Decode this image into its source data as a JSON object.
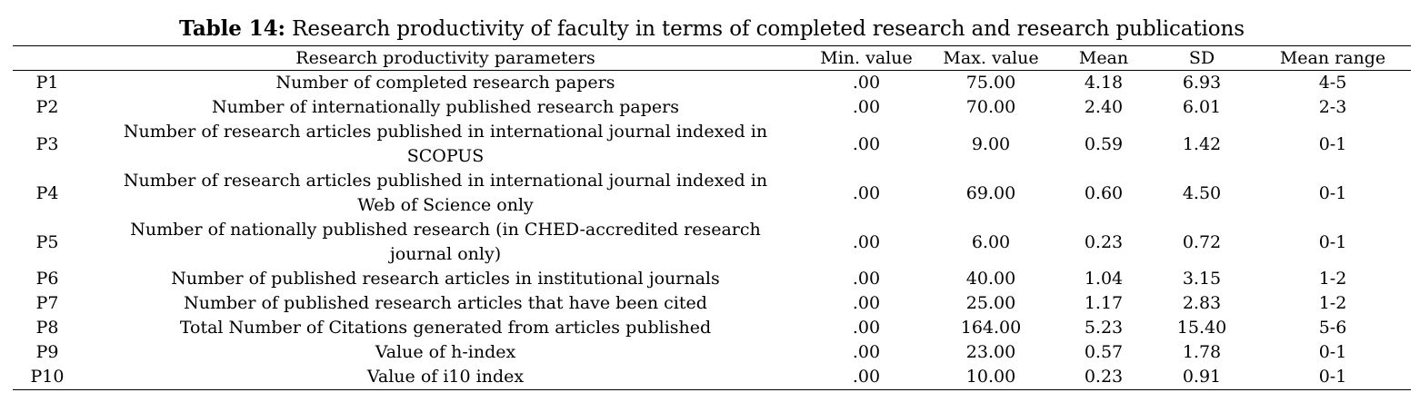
{
  "caption": {
    "label": "Table 14:",
    "text": "Research productivity of faculty in terms of completed research and research publications"
  },
  "table": {
    "headers": [
      "",
      "Research productivity parameters",
      "Min. value",
      "Max. value",
      "Mean",
      "SD",
      "Mean range"
    ],
    "rows": [
      {
        "id": "P1",
        "parameter": "Number of completed research papers",
        "min": ".00",
        "max": "75.00",
        "mean": "4.18",
        "sd": "6.93",
        "range": "4-5"
      },
      {
        "id": "P2",
        "parameter": "Number of internationally published research papers",
        "min": ".00",
        "max": "70.00",
        "mean": "2.40",
        "sd": "6.01",
        "range": "2-3"
      },
      {
        "id": "P3",
        "parameter": "Number of research articles published in international journal indexed in SCOPUS",
        "min": ".00",
        "max": "9.00",
        "mean": "0.59",
        "sd": "1.42",
        "range": "0-1"
      },
      {
        "id": "P4",
        "parameter": "Number of research articles published in international journal indexed in Web of Science only",
        "min": ".00",
        "max": "69.00",
        "mean": "0.60",
        "sd": "4.50",
        "range": "0-1"
      },
      {
        "id": "P5",
        "parameter": "Number of nationally published research (in CHED-accredited research journal only)",
        "min": ".00",
        "max": "6.00",
        "mean": "0.23",
        "sd": "0.72",
        "range": "0-1"
      },
      {
        "id": "P6",
        "parameter": "Number of published research articles in institutional journals",
        "min": ".00",
        "max": "40.00",
        "mean": "1.04",
        "sd": "3.15",
        "range": "1-2"
      },
      {
        "id": "P7",
        "parameter": "Number of published research articles that have been cited",
        "min": ".00",
        "max": "25.00",
        "mean": "1.17",
        "sd": "2.83",
        "range": "1-2"
      },
      {
        "id": "P8",
        "parameter": "Total Number of Citations generated from articles published",
        "min": ".00",
        "max": "164.00",
        "mean": "5.23",
        "sd": "15.40",
        "range": "5-6"
      },
      {
        "id": "P9",
        "parameter": "Value of h-index",
        "min": ".00",
        "max": "23.00",
        "mean": "0.57",
        "sd": "1.78",
        "range": "0-1"
      },
      {
        "id": "P10",
        "parameter": "Value of i10 index",
        "min": ".00",
        "max": "10.00",
        "mean": "0.23",
        "sd": "0.91",
        "range": "0-1"
      }
    ]
  }
}
